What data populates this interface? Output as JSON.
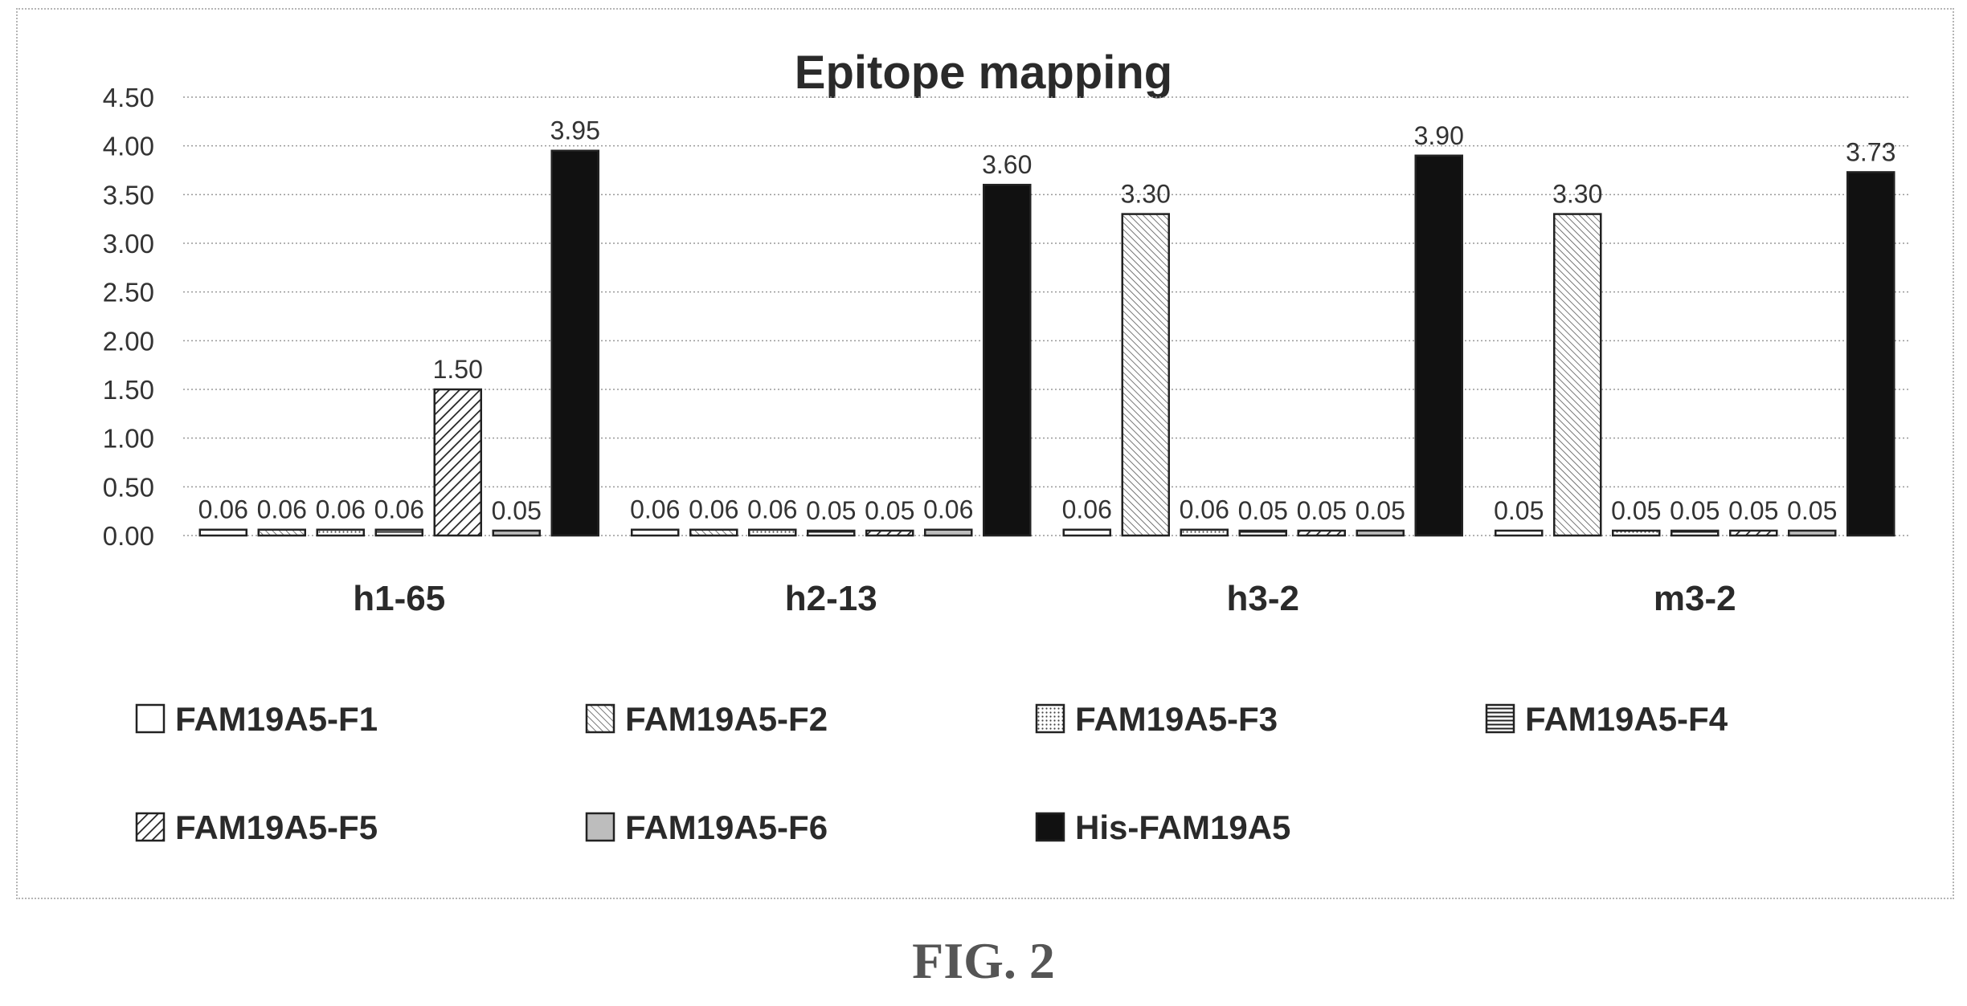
{
  "chart_data": {
    "type": "bar",
    "title": "Epitope mapping",
    "xlabel": "",
    "ylabel": "",
    "ylim": [
      0,
      4.5
    ],
    "yticks": [
      "0.00",
      "0.50",
      "1.00",
      "1.50",
      "2.00",
      "2.50",
      "3.00",
      "3.50",
      "4.00",
      "4.50"
    ],
    "grid": true,
    "legend_position": "bottom",
    "categories": [
      "h1-65",
      "h2-13",
      "h3-2",
      "m3-2"
    ],
    "series": [
      {
        "name": "FAM19A5-F1",
        "values": [
          0.06,
          0.06,
          0.06,
          0.05
        ],
        "labels": [
          "0.06",
          "0.06",
          "0.06",
          "0.05"
        ],
        "pattern": "white"
      },
      {
        "name": "FAM19A5-F2",
        "values": [
          0.06,
          0.06,
          3.3,
          3.3
        ],
        "labels": [
          "0.06",
          "0.06",
          "3.30",
          "3.30"
        ],
        "pattern": "diag-fine"
      },
      {
        "name": "FAM19A5-F3",
        "values": [
          0.06,
          0.06,
          0.06,
          0.05
        ],
        "labels": [
          "0.06",
          "0.06",
          "0.06",
          "0.05"
        ],
        "pattern": "dots"
      },
      {
        "name": "FAM19A5-F4",
        "values": [
          0.06,
          0.05,
          0.05,
          0.05
        ],
        "labels": [
          "0.06",
          "0.05",
          "0.05",
          "0.05"
        ],
        "pattern": "hlines"
      },
      {
        "name": "FAM19A5-F5",
        "values": [
          1.5,
          0.05,
          0.05,
          0.05
        ],
        "labels": [
          "1.50",
          "0.05",
          "0.05",
          "0.05"
        ],
        "pattern": "diag-bold"
      },
      {
        "name": "FAM19A5-F6",
        "values": [
          0.05,
          0.06,
          0.05,
          0.05
        ],
        "labels": [
          "0.05",
          "0.06",
          "0.05",
          "0.05"
        ],
        "pattern": "gray"
      },
      {
        "name": "His-FAM19A5",
        "values": [
          3.95,
          3.6,
          3.9,
          3.73
        ],
        "labels": [
          "3.95",
          "3.60",
          "3.90",
          "3.73"
        ],
        "pattern": "black"
      }
    ]
  },
  "figure_label": "FIG. 2",
  "colors": {
    "black_bar": "#111111",
    "gray_bar": "#bdbdbd",
    "grid": "#9a9a9a",
    "text": "#2a2a2a"
  }
}
